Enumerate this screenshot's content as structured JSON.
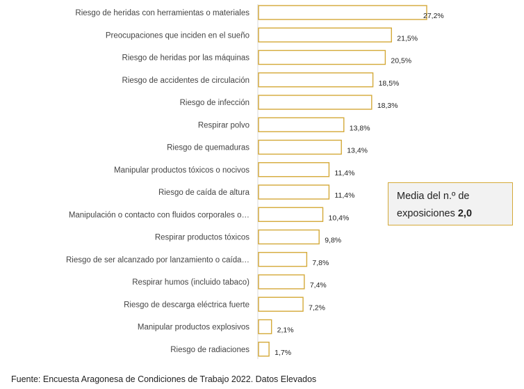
{
  "chart_data": {
    "type": "bar",
    "orientation": "horizontal",
    "categories": [
      "Riesgo de heridas con herramientas o materiales",
      "Preocupaciones que inciden en el sueño",
      "Riesgo de heridas por las máquinas",
      "Riesgo de accidentes de circulación",
      "Riesgo de infección",
      "Respirar polvo",
      "Riesgo de quemaduras",
      "Manipular productos tóxicos o nocivos",
      "Riesgo de caída de altura",
      "Manipulación o contacto con fluidos corporales o…",
      "Respirar productos tóxicos",
      "Riesgo de ser alcanzado por lanzamiento o caída…",
      "Respirar humos (incluido tabaco)",
      "Riesgo de descarga eléctrica fuerte",
      "Manipular productos explosivos",
      "Riesgo de radiaciones"
    ],
    "values": [
      27.2,
      21.5,
      20.5,
      18.5,
      18.3,
      13.8,
      13.4,
      11.4,
      11.4,
      10.4,
      9.8,
      7.8,
      7.4,
      7.2,
      2.1,
      1.7
    ],
    "value_labels": [
      "27,2%",
      "21,5%",
      "20,5%",
      "18,5%",
      "18,3%",
      "13,8%",
      "13,4%",
      "11,4%",
      "11,4%",
      "10,4%",
      "9,8%",
      "7,8%",
      "7,4%",
      "7,2%",
      "2,1%",
      "1,7%"
    ],
    "xlim": [
      0,
      27.2
    ],
    "bar_color": "#d4a938",
    "grid": false,
    "legend": "none"
  },
  "info_box": {
    "text": "Media del n.º de exposiciones",
    "value": "2,0"
  },
  "source": "Fuente: Encuesta Aragonesa de Condiciones de Trabajo 2022. Datos Elevados"
}
